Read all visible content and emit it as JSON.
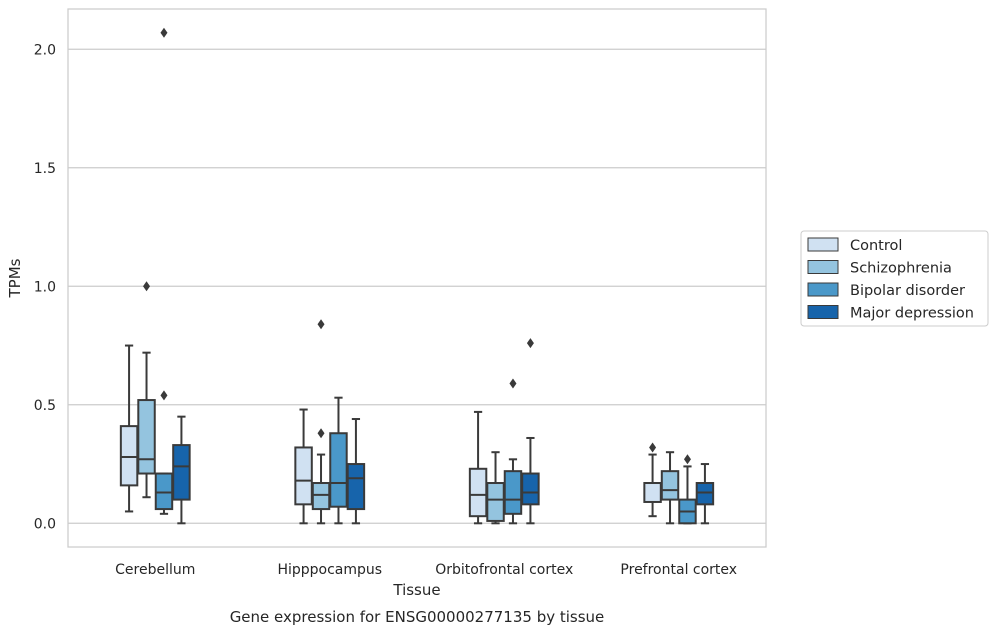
{
  "chart_data": {
    "type": "box",
    "xlabel": "Tissue",
    "ylabel": "TPMs",
    "caption": "Gene expression for ENSG00000277135 by tissue",
    "ylim": [
      -0.1,
      2.17
    ],
    "y_ticks": [
      0.0,
      0.5,
      1.0,
      1.5,
      2.0
    ],
    "y_tick_labels": [
      "0.0",
      "0.5",
      "1.0",
      "1.5",
      "2.0"
    ],
    "grid": "horizontal",
    "legend_position": "right",
    "categories": [
      "Cerebellum",
      "Hipppocampus",
      "Orbitofrontal cortex",
      "Prefrontal cortex"
    ],
    "series": [
      {
        "name": "Control",
        "color": "#d0e1f2",
        "boxes": [
          {
            "whislo": 0.05,
            "q1": 0.16,
            "med": 0.28,
            "q3": 0.41,
            "whishi": 0.75,
            "fliers": []
          },
          {
            "whislo": 0.0,
            "q1": 0.08,
            "med": 0.18,
            "q3": 0.32,
            "whishi": 0.48,
            "fliers": []
          },
          {
            "whislo": 0.0,
            "q1": 0.03,
            "med": 0.12,
            "q3": 0.23,
            "whishi": 0.47,
            "fliers": []
          },
          {
            "whislo": 0.03,
            "q1": 0.09,
            "med": 0.17,
            "q3": 0.17,
            "whishi": 0.29,
            "fliers": [
              0.32
            ]
          }
        ]
      },
      {
        "name": "Schizophrenia",
        "color": "#94c4df",
        "boxes": [
          {
            "whislo": 0.11,
            "q1": 0.21,
            "med": 0.27,
            "q3": 0.52,
            "whishi": 0.72,
            "fliers": [
              1.0
            ]
          },
          {
            "whislo": 0.0,
            "q1": 0.06,
            "med": 0.12,
            "q3": 0.17,
            "whishi": 0.29,
            "fliers": [
              0.38,
              0.84
            ]
          },
          {
            "whislo": 0.0,
            "q1": 0.01,
            "med": 0.1,
            "q3": 0.17,
            "whishi": 0.3,
            "fliers": []
          },
          {
            "whislo": 0.0,
            "q1": 0.1,
            "med": 0.14,
            "q3": 0.22,
            "whishi": 0.3,
            "fliers": []
          }
        ]
      },
      {
        "name": "Bipolar disorder",
        "color": "#4a98c9",
        "boxes": [
          {
            "whislo": 0.04,
            "q1": 0.06,
            "med": 0.13,
            "q3": 0.21,
            "whishi": 0.21,
            "fliers": [
              0.54,
              2.07
            ]
          },
          {
            "whislo": 0.0,
            "q1": 0.07,
            "med": 0.17,
            "q3": 0.38,
            "whishi": 0.53,
            "fliers": []
          },
          {
            "whislo": 0.0,
            "q1": 0.04,
            "med": 0.1,
            "q3": 0.22,
            "whishi": 0.27,
            "fliers": [
              0.59
            ]
          },
          {
            "whislo": 0.0,
            "q1": 0.0,
            "med": 0.05,
            "q3": 0.1,
            "whishi": 0.24,
            "fliers": [
              0.27
            ]
          }
        ]
      },
      {
        "name": "Major depression",
        "color": "#1764ab",
        "boxes": [
          {
            "whislo": 0.0,
            "q1": 0.1,
            "med": 0.24,
            "q3": 0.33,
            "whishi": 0.45,
            "fliers": []
          },
          {
            "whislo": 0.0,
            "q1": 0.06,
            "med": 0.19,
            "q3": 0.25,
            "whishi": 0.44,
            "fliers": []
          },
          {
            "whislo": 0.0,
            "q1": 0.08,
            "med": 0.13,
            "q3": 0.21,
            "whishi": 0.36,
            "fliers": [
              0.76
            ]
          },
          {
            "whislo": 0.0,
            "q1": 0.08,
            "med": 0.13,
            "q3": 0.17,
            "whishi": 0.25,
            "fliers": []
          }
        ]
      }
    ]
  }
}
